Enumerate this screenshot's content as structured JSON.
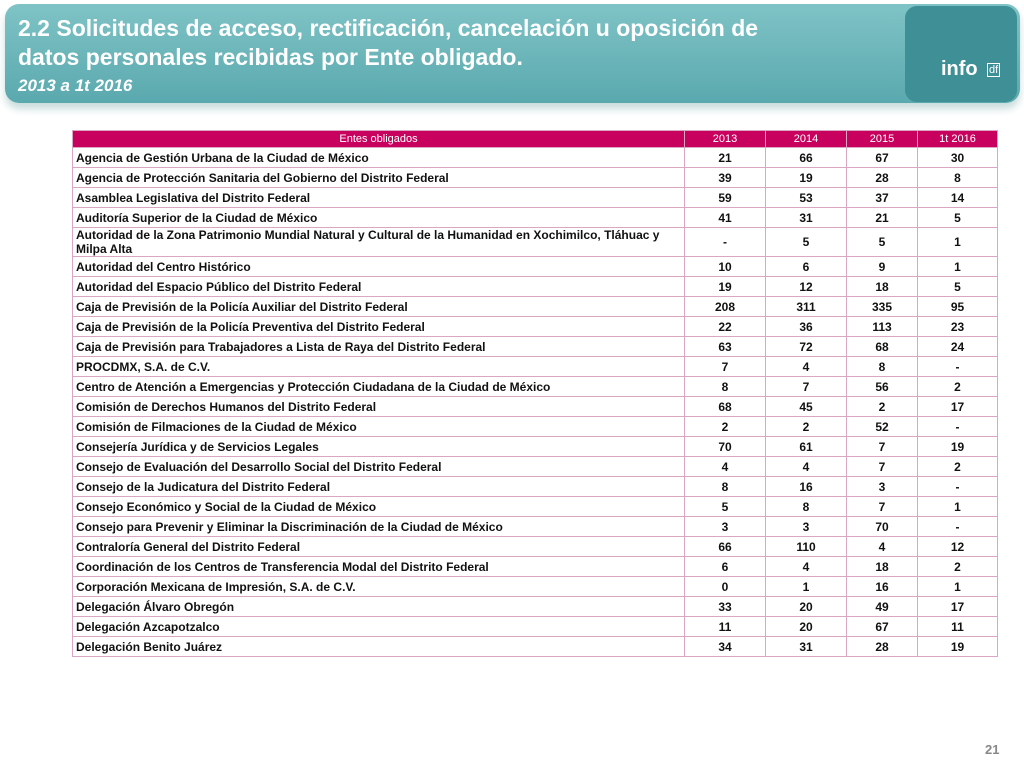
{
  "header": {
    "title": "2.2 Solicitudes de acceso, rectificación, cancelación u oposición de datos personales recibidas por Ente obligado.",
    "subtitle": "2013 a 1t 2016",
    "logo": "info",
    "logo_suffix": "df"
  },
  "table": {
    "columns": [
      "Entes obligados",
      "2013",
      "2014",
      "2015",
      "1t 2016"
    ],
    "rows": [
      [
        "Agencia de Gestión Urbana de la Ciudad de México",
        21,
        66,
        67,
        30
      ],
      [
        "Agencia de Protección Sanitaria del Gobierno del Distrito Federal",
        39,
        19,
        28,
        8
      ],
      [
        "Asamblea Legislativa del Distrito Federal",
        59,
        53,
        37,
        14
      ],
      [
        "Auditoría Superior de la Ciudad de México",
        41,
        31,
        21,
        5
      ],
      [
        "Autoridad de la Zona Patrimonio Mundial Natural y Cultural de la Humanidad en Xochimilco, Tláhuac y Milpa Alta",
        "-",
        5,
        5,
        1
      ],
      [
        "Autoridad del Centro Histórico",
        10,
        6,
        9,
        1
      ],
      [
        "Autoridad del Espacio Público del Distrito Federal",
        19,
        12,
        18,
        5
      ],
      [
        "Caja de Previsión de la Policía Auxiliar del Distrito Federal",
        208,
        311,
        335,
        95
      ],
      [
        "Caja de Previsión de la Policía Preventiva del Distrito Federal",
        22,
        36,
        113,
        23
      ],
      [
        "Caja de Previsión para Trabajadores a Lista de Raya del Distrito Federal",
        63,
        72,
        68,
        24
      ],
      [
        "PROCDMX, S.A. de C.V.",
        7,
        4,
        8,
        "-"
      ],
      [
        "Centro de Atención a Emergencias y Protección Ciudadana de la Ciudad de México",
        8,
        7,
        56,
        2
      ],
      [
        "Comisión de Derechos Humanos del Distrito Federal",
        68,
        45,
        2,
        17
      ],
      [
        "Comisión de Filmaciones de la Ciudad de México",
        2,
        2,
        52,
        "-"
      ],
      [
        "Consejería Jurídica y de Servicios Legales",
        70,
        61,
        7,
        19
      ],
      [
        "Consejo de Evaluación del Desarrollo Social del Distrito Federal",
        4,
        4,
        7,
        2
      ],
      [
        "Consejo de la Judicatura del Distrito Federal",
        8,
        16,
        3,
        "-"
      ],
      [
        "Consejo Económico y Social de la Ciudad de México",
        5,
        8,
        7,
        1
      ],
      [
        "Consejo para Prevenir y Eliminar la Discriminación de la Ciudad de México",
        3,
        3,
        70,
        "-"
      ],
      [
        "Contraloría General del Distrito Federal",
        66,
        110,
        4,
        12
      ],
      [
        "Coordinación de los Centros de Transferencia Modal del Distrito Federal",
        6,
        4,
        18,
        2
      ],
      [
        "Corporación Mexicana de Impresión, S.A. de C.V.",
        0,
        1,
        16,
        1
      ],
      [
        "Delegación Álvaro Obregón",
        33,
        20,
        49,
        17
      ],
      [
        "Delegación Azcapotzalco",
        11,
        20,
        67,
        11
      ],
      [
        "Delegación Benito Juárez",
        34,
        31,
        28,
        19
      ]
    ]
  },
  "page_number": 21
}
